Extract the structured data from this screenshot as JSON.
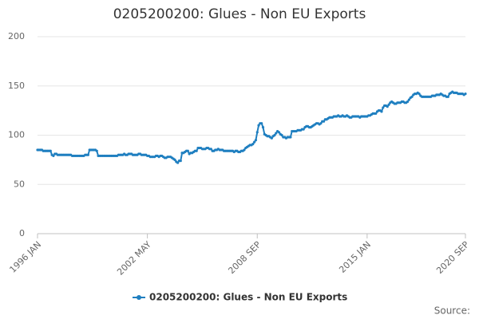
{
  "chart_data": {
    "type": "line",
    "title": "0205200200: Glues - Non EU Exports",
    "source": "Source:",
    "categories": [
      "1996 JAN",
      null,
      null,
      null,
      null,
      null,
      null,
      null,
      null,
      null,
      null,
      null,
      null,
      null,
      null,
      null,
      null,
      null,
      null,
      null,
      null,
      null,
      null,
      null,
      null,
      null,
      null,
      null,
      null,
      null,
      null,
      null,
      null,
      null,
      null,
      null,
      null,
      null,
      null,
      null,
      null,
      null,
      null,
      null,
      null,
      null,
      null,
      null,
      null,
      null,
      null,
      null,
      null,
      null,
      null,
      null,
      null,
      null,
      null,
      null,
      null,
      null,
      null,
      null,
      null,
      null,
      null,
      null,
      null,
      null,
      null,
      null,
      null,
      null,
      null,
      null,
      "2002 MAY",
      null,
      null,
      null,
      null,
      null,
      null,
      null,
      null,
      null,
      null,
      null,
      null,
      null,
      null,
      null,
      null,
      null,
      null,
      null,
      null,
      null,
      null,
      null,
      null,
      null,
      null,
      null,
      null,
      null,
      null,
      null,
      null,
      null,
      null,
      null,
      null,
      null,
      null,
      null,
      null,
      null,
      null,
      null,
      null,
      null,
      null,
      null,
      null,
      null,
      null,
      null,
      null,
      null,
      null,
      null,
      null,
      null,
      null,
      null,
      null,
      null,
      null,
      null,
      null,
      null,
      null,
      null,
      null,
      null,
      null,
      null,
      null,
      null,
      null,
      null,
      "2008 SEP",
      null,
      null,
      null,
      null,
      null,
      null,
      null,
      null,
      null,
      null,
      null,
      null,
      null,
      null,
      null,
      null,
      null,
      null,
      null,
      null,
      null,
      null,
      null,
      null,
      null,
      null,
      null,
      null,
      null,
      null,
      null,
      null,
      null,
      null,
      null,
      null,
      null,
      null,
      null,
      null,
      null,
      null,
      null,
      null,
      null,
      null,
      null,
      null,
      null,
      null,
      null,
      null,
      null,
      null,
      null,
      null,
      null,
      null,
      null,
      null,
      null,
      null,
      null,
      null,
      null,
      null,
      null,
      null,
      null,
      null,
      null,
      null,
      null,
      null,
      null,
      "2015 JAN",
      null,
      null,
      null,
      null,
      null,
      null,
      null,
      null,
      null,
      null,
      null,
      null,
      null,
      null,
      null,
      null,
      null,
      null,
      null,
      null,
      null,
      null,
      null,
      null,
      null,
      null,
      null,
      null,
      null,
      null,
      null,
      null,
      null,
      null,
      null,
      null,
      null,
      null,
      null,
      null,
      null,
      null,
      null,
      null,
      null,
      null,
      null,
      null,
      null,
      null,
      null,
      null,
      null,
      null,
      null,
      null,
      null,
      null,
      null,
      null,
      null,
      null,
      null,
      null,
      null,
      null,
      null,
      "2020 SEP"
    ],
    "series": [
      {
        "name": "0205200200: Glues - Non EU Exports",
        "color": "#1f7fc0",
        "values": [
          85,
          85,
          85,
          85,
          84,
          84,
          84,
          84,
          84,
          84,
          80,
          79,
          81,
          81,
          80,
          80,
          80,
          80,
          80,
          80,
          80,
          80,
          80,
          80,
          79,
          79,
          79,
          79,
          79,
          79,
          79,
          79,
          79,
          80,
          80,
          80,
          85,
          85,
          85,
          85,
          85,
          84,
          79,
          79,
          79,
          79,
          79,
          79,
          79,
          79,
          79,
          79,
          79,
          79,
          79,
          79,
          80,
          80,
          80,
          80,
          81,
          80,
          80,
          81,
          81,
          81,
          80,
          80,
          80,
          80,
          81,
          81,
          80,
          80,
          80,
          80,
          79,
          79,
          78,
          78,
          78,
          78,
          79,
          79,
          78,
          79,
          79,
          78,
          77,
          77,
          78,
          78,
          78,
          77,
          76,
          75,
          73,
          72,
          74,
          74,
          82,
          82,
          83,
          84,
          84,
          81,
          82,
          82,
          83,
          84,
          84,
          87,
          87,
          87,
          86,
          86,
          86,
          87,
          87,
          86,
          86,
          84,
          84,
          85,
          85,
          86,
          85,
          85,
          85,
          84,
          84,
          84,
          84,
          84,
          84,
          84,
          83,
          84,
          84,
          83,
          83,
          84,
          84,
          85,
          87,
          88,
          89,
          90,
          90,
          91,
          93,
          95,
          103,
          110,
          112,
          112,
          108,
          101,
          100,
          99,
          99,
          98,
          97,
          99,
          100,
          102,
          104,
          103,
          101,
          100,
          98,
          98,
          97,
          98,
          98,
          98,
          104,
          104,
          104,
          104,
          105,
          105,
          105,
          106,
          106,
          108,
          109,
          109,
          108,
          108,
          109,
          110,
          111,
          112,
          112,
          111,
          112,
          114,
          114,
          116,
          116,
          117,
          118,
          118,
          118,
          119,
          119,
          119,
          120,
          119,
          119,
          120,
          119,
          119,
          120,
          119,
          118,
          118,
          119,
          119,
          119,
          119,
          119,
          118,
          119,
          119,
          119,
          119,
          119,
          120,
          120,
          121,
          122,
          122,
          122,
          124,
          125,
          125,
          124,
          128,
          130,
          130,
          129,
          131,
          133,
          134,
          133,
          132,
          132,
          133,
          133,
          133,
          134,
          134,
          133,
          133,
          134,
          136,
          138,
          139,
          141,
          142,
          142,
          143,
          142,
          140,
          139,
          139,
          139,
          139,
          139,
          139,
          139,
          140,
          140,
          140,
          141,
          141,
          141,
          142,
          141,
          140,
          140,
          139,
          139,
          142,
          143,
          144,
          143,
          143,
          143,
          142,
          142,
          142,
          142,
          141,
          142
        ]
      }
    ],
    "ylim": [
      0,
      200
    ],
    "yticks": [
      0,
      50,
      100,
      150,
      200
    ],
    "grid": true
  }
}
